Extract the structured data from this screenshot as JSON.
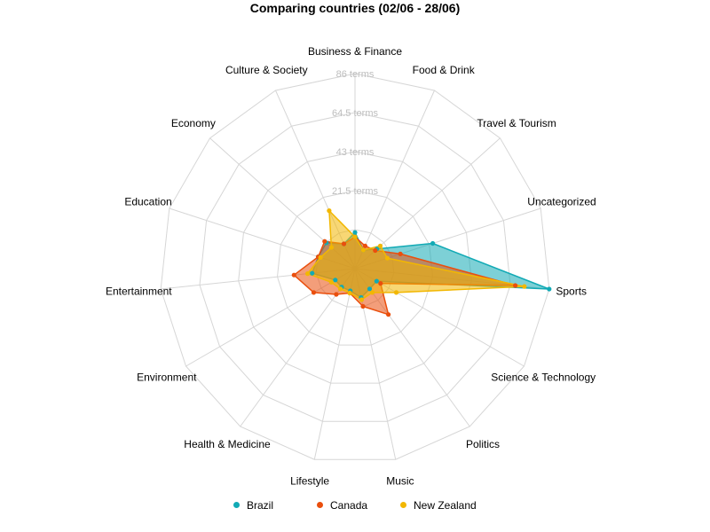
{
  "chart_data": {
    "type": "radar",
    "title": "Comparing countries (02/06 - 28/06)",
    "axes": [
      "Business & Finance",
      "Food & Drink",
      "Travel & Tourism",
      "Uncategorized",
      "Sports",
      "Science & Technology",
      "Politics",
      "Music",
      "Lifestyle",
      "Health & Medicine",
      "Environment",
      "Entertainment",
      "Education",
      "Economy",
      "Culture & Society"
    ],
    "ring_labels": [
      "21.5 terms",
      "43 terms",
      "64.5 terms",
      "86 terms"
    ],
    "rmax": 86,
    "grid": true,
    "legend_position": "bottom",
    "series": [
      {
        "name": "Brazil",
        "color": "#12aab5",
        "fill_opacity": 0.55,
        "values": [
          16,
          9,
          13,
          36,
          86,
          11,
          11,
          13,
          10,
          10,
          10,
          19,
          17,
          17,
          12
        ]
      },
      {
        "name": "Canada",
        "color": "#ea4f0d",
        "fill_opacity": 0.55,
        "values": [
          14,
          11,
          12,
          21,
          71,
          13,
          25,
          17,
          11,
          14,
          21,
          27,
          17,
          18,
          12
        ]
      },
      {
        "name": "New Zealand",
        "color": "#f2b701",
        "fill_opacity": 0.55,
        "values": [
          14,
          9,
          15,
          15,
          75,
          21,
          13,
          14,
          11,
          11,
          12,
          21,
          16,
          14,
          28
        ]
      }
    ]
  }
}
